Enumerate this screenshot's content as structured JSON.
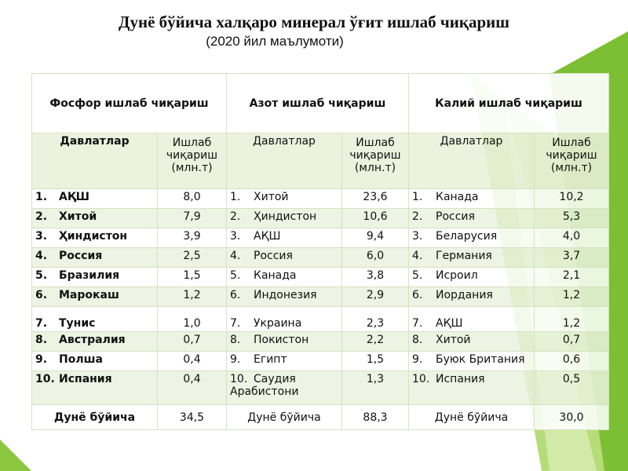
{
  "header": {
    "title": "Дунё бўйича халқаро минерал ўғит ишлаб чиқариш",
    "subtitle": "(2020 йил маълумоти)"
  },
  "table": {
    "country_header": "Давлатлар",
    "value_header": "Ишлаб чиқариш (млн.т)",
    "total_label": "Дунё бўйича",
    "groups": [
      {
        "title": "Фосфор ишлаб чиқариш",
        "total": "34,5",
        "rows": [
          {
            "rank": "1.",
            "country": "АҚШ",
            "value": "8,0"
          },
          {
            "rank": "2.",
            "country": "Хитой",
            "value": "7,9"
          },
          {
            "rank": "3.",
            "country": "Ҳиндистон",
            "value": "3,9"
          },
          {
            "rank": "4.",
            "country": "Россия",
            "value": "2,5"
          },
          {
            "rank": "5.",
            "country": "Бразилия",
            "value": "1,5"
          },
          {
            "rank": "6.",
            "country": "Марокаш",
            "value": "1,2"
          },
          {
            "rank": "7.",
            "country": "Тунис",
            "value": "1,0"
          },
          {
            "rank": "8.",
            "country": "Австралия",
            "value": "0,7"
          },
          {
            "rank": "9.",
            "country": "Полша",
            "value": "0,4"
          },
          {
            "rank": "10.",
            "country": "Испания",
            "value": "0,4"
          }
        ]
      },
      {
        "title": "Азот ишлаб чиқариш",
        "total": "88,3",
        "rows": [
          {
            "rank": "1.",
            "country": "Хитой",
            "value": "23,6"
          },
          {
            "rank": "2.",
            "country": "Ҳиндистон",
            "value": "10,6"
          },
          {
            "rank": "3.",
            "country": "АҚШ",
            "value": "9,4"
          },
          {
            "rank": "4.",
            "country": "Россия",
            "value": "6,0"
          },
          {
            "rank": "5.",
            "country": "Канада",
            "value": "3,8"
          },
          {
            "rank": "6.",
            "country": "Индонезия",
            "value": "2,9"
          },
          {
            "rank": "7.",
            "country": "Украина",
            "value": "2,3"
          },
          {
            "rank": "8.",
            "country": "Покистон",
            "value": "2,2"
          },
          {
            "rank": "9.",
            "country": "Египт",
            "value": "1,5"
          },
          {
            "rank": "10.",
            "country": "Саудия Арабистони",
            "value": "1,3"
          }
        ]
      },
      {
        "title": "Калий ишлаб чиқариш",
        "total": "30,0",
        "rows": [
          {
            "rank": "1.",
            "country": "Канада",
            "value": "10,2"
          },
          {
            "rank": "2.",
            "country": "Россия",
            "value": "5,3"
          },
          {
            "rank": "3.",
            "country": "Беларусия",
            "value": "4,0"
          },
          {
            "rank": "4.",
            "country": "Германия",
            "value": "3,7"
          },
          {
            "rank": "5.",
            "country": "Исроил",
            "value": "2,1"
          },
          {
            "rank": "6.",
            "country": "Иордания",
            "value": "1,2"
          },
          {
            "rank": "7.",
            "country": "АҚШ",
            "value": "1,2"
          },
          {
            "rank": "8.",
            "country": "Хитой",
            "value": "0,7"
          },
          {
            "rank": "9.",
            "country": "Буюк Британия",
            "value": "0,6"
          },
          {
            "rank": "10.",
            "country": "Испания",
            "value": "0,5"
          }
        ]
      }
    ]
  }
}
